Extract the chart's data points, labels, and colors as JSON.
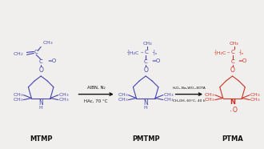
{
  "bg_color": "#f0efee",
  "blue_color": "#4444aa",
  "red_color": "#cc3322",
  "arrow_color": "#222222",
  "label_color": "#111111",
  "molecule1_label": "MTMP",
  "molecule2_label": "PMTMP",
  "molecule3_label": "PTMA",
  "reaction1_line1": "AlBN, N₂",
  "reaction1_line2": "HAc, 70 °C",
  "reaction2_line1": "H₂O₂-Na₂WO₄-EDTA",
  "reaction2_line2": "CH₃OH, 60°C, 40 h",
  "figsize": [
    3.3,
    1.86
  ],
  "dpi": 100
}
